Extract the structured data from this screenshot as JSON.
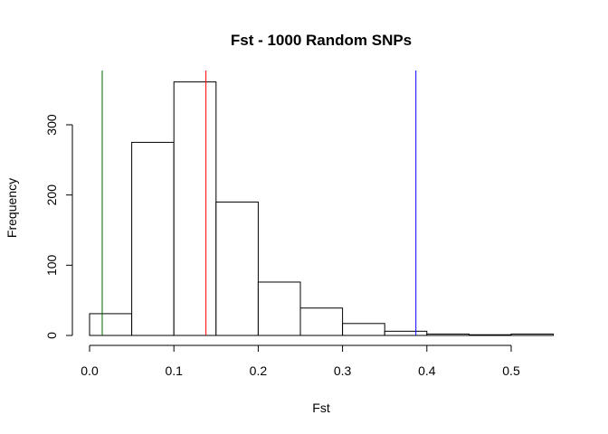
{
  "chart_data": {
    "type": "histogram",
    "title": "Fst - 1000 Random SNPs",
    "xlabel": "Fst",
    "ylabel": "Frequency",
    "bins": [
      {
        "start": 0.0,
        "end": 0.05,
        "count": 31
      },
      {
        "start": 0.05,
        "end": 0.1,
        "count": 275
      },
      {
        "start": 0.1,
        "end": 0.15,
        "count": 361
      },
      {
        "start": 0.15,
        "end": 0.2,
        "count": 190
      },
      {
        "start": 0.2,
        "end": 0.25,
        "count": 76
      },
      {
        "start": 0.25,
        "end": 0.3,
        "count": 39
      },
      {
        "start": 0.3,
        "end": 0.35,
        "count": 17
      },
      {
        "start": 0.35,
        "end": 0.4,
        "count": 6
      },
      {
        "start": 0.4,
        "end": 0.45,
        "count": 2
      },
      {
        "start": 0.45,
        "end": 0.5,
        "count": 1
      },
      {
        "start": 0.5,
        "end": 0.55,
        "count": 2
      }
    ],
    "xlim": [
      0.0,
      0.55
    ],
    "ylim": [
      0,
      375
    ],
    "x_ticks": [
      "0.0",
      "0.1",
      "0.2",
      "0.3",
      "0.4",
      "0.5"
    ],
    "y_ticks": [
      "0",
      "100",
      "200",
      "300"
    ],
    "vertical_lines": [
      {
        "x": 0.015,
        "color": "#006400"
      },
      {
        "x": 0.138,
        "color": "#ff0000"
      },
      {
        "x": 0.387,
        "color": "#0000ff"
      }
    ],
    "grid": false,
    "bar_fill": "#ffffff",
    "bar_stroke": "#000000"
  }
}
